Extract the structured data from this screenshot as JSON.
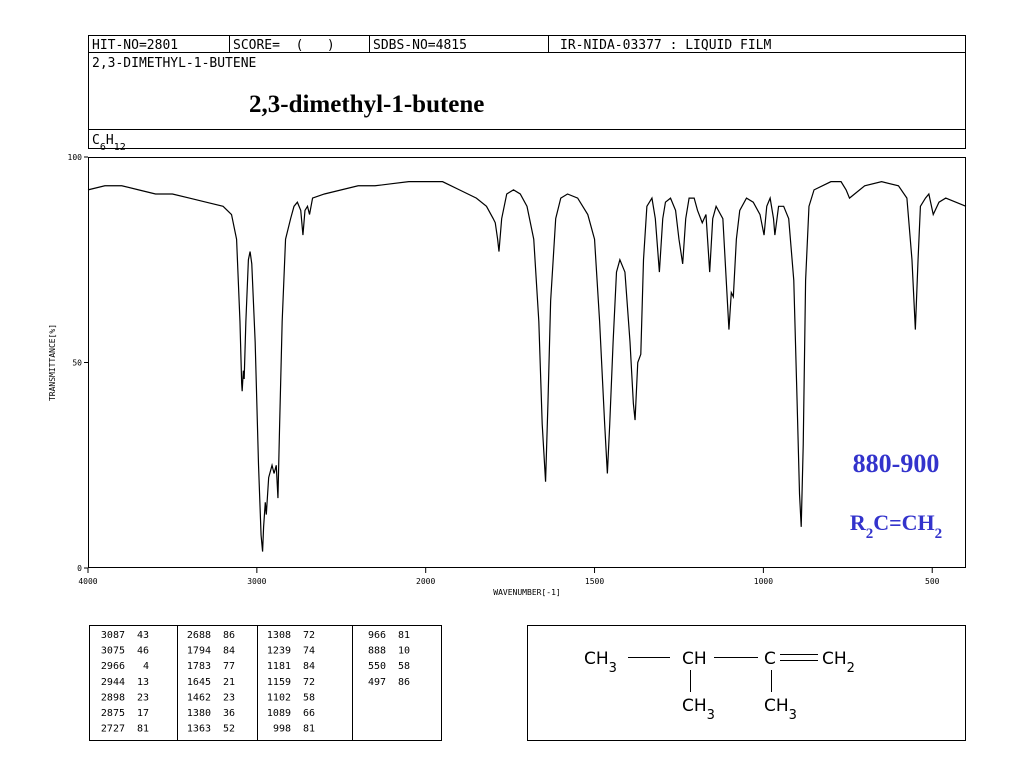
{
  "header": {
    "hit_no": "HIT-NO=2801",
    "score": "SCORE=  (   )",
    "sdbs_no": "SDBS-NO=4815",
    "ir_id": "IR-NIDA-03377 : LIQUID FILM",
    "name": "2,3-DIMETHYL-1-BUTENE",
    "name_overlay": "2,3-dimethyl-1-butene",
    "formula": [
      "C",
      "6",
      "H",
      "12"
    ]
  },
  "chart_data": {
    "type": "line",
    "x_label": "WAVENUMBER[-1]",
    "y_label": "TRANSMITTANCE[%]",
    "color": "#000000",
    "xlim": [
      4000,
      400
    ],
    "ylim": [
      0,
      100
    ],
    "xticks": [
      4000,
      3000,
      2000,
      1500,
      1000,
      500
    ],
    "yticks": [
      0,
      50,
      100
    ],
    "annotation_color": "#3333cc",
    "annotations": [
      {
        "text": [
          "880-900"
        ]
      },
      {
        "text": [
          "R",
          "2",
          "C=CH",
          "2"
        ]
      }
    ],
    "x": [
      4000,
      3900,
      3800,
      3700,
      3600,
      3500,
      3400,
      3300,
      3200,
      3150,
      3120,
      3100,
      3090,
      3087,
      3080,
      3075,
      3065,
      3050,
      3040,
      3030,
      3010,
      2990,
      2975,
      2966,
      2960,
      2950,
      2944,
      2930,
      2910,
      2898,
      2885,
      2875,
      2865,
      2850,
      2830,
      2800,
      2780,
      2760,
      2740,
      2727,
      2715,
      2700,
      2688,
      2670,
      2600,
      2500,
      2400,
      2300,
      2200,
      2100,
      2000,
      1950,
      1900,
      1850,
      1820,
      1800,
      1794,
      1787,
      1783,
      1775,
      1760,
      1740,
      1720,
      1700,
      1680,
      1665,
      1655,
      1645,
      1638,
      1630,
      1615,
      1600,
      1580,
      1550,
      1520,
      1500,
      1485,
      1470,
      1462,
      1455,
      1445,
      1435,
      1425,
      1410,
      1395,
      1385,
      1380,
      1372,
      1363,
      1355,
      1345,
      1330,
      1320,
      1308,
      1298,
      1290,
      1275,
      1260,
      1250,
      1239,
      1230,
      1220,
      1205,
      1195,
      1181,
      1170,
      1159,
      1150,
      1140,
      1120,
      1110,
      1102,
      1095,
      1089,
      1080,
      1070,
      1050,
      1030,
      1010,
      998,
      990,
      980,
      970,
      966,
      955,
      940,
      925,
      910,
      900,
      893,
      888,
      882,
      875,
      865,
      850,
      800,
      770,
      755,
      745,
      730,
      700,
      650,
      600,
      575,
      560,
      550,
      542,
      535,
      520,
      510,
      497,
      480,
      460,
      430,
      400
    ],
    "values": [
      92,
      93,
      93,
      92,
      91,
      91,
      90,
      89,
      88,
      86,
      80,
      60,
      45,
      43,
      48,
      46,
      60,
      75,
      77,
      74,
      55,
      25,
      8,
      4,
      10,
      16,
      13,
      22,
      25,
      23,
      25,
      17,
      35,
      60,
      80,
      85,
      88,
      89,
      87,
      81,
      87,
      88,
      86,
      90,
      91,
      92,
      93,
      93,
      93.5,
      94,
      94,
      94,
      92,
      90,
      88,
      85,
      84,
      80,
      77,
      85,
      91,
      92,
      91,
      88,
      80,
      60,
      35,
      21,
      40,
      65,
      85,
      90,
      91,
      90,
      86,
      80,
      60,
      35,
      23,
      35,
      55,
      72,
      75,
      72,
      55,
      40,
      36,
      50,
      52,
      75,
      88,
      90,
      85,
      72,
      85,
      89,
      90,
      87,
      80,
      74,
      85,
      90,
      90,
      87,
      84,
      86,
      72,
      85,
      88,
      85,
      70,
      58,
      67,
      66,
      80,
      87,
      90,
      89,
      86,
      81,
      88,
      90,
      85,
      81,
      88,
      88,
      85,
      70,
      40,
      18,
      10,
      30,
      70,
      88,
      92,
      94,
      94,
      92,
      90,
      91,
      93,
      94,
      93,
      90,
      75,
      58,
      75,
      88,
      90,
      91,
      86,
      89,
      90,
      89,
      88
    ]
  },
  "peak_table": {
    "columns": [
      [
        [
          3087,
          43
        ],
        [
          3075,
          46
        ],
        [
          2966,
          4
        ],
        [
          2944,
          13
        ],
        [
          2898,
          23
        ],
        [
          2875,
          17
        ],
        [
          2727,
          81
        ]
      ],
      [
        [
          2688,
          86
        ],
        [
          1794,
          84
        ],
        [
          1783,
          77
        ],
        [
          1645,
          21
        ],
        [
          1462,
          23
        ],
        [
          1380,
          36
        ],
        [
          1363,
          52
        ]
      ],
      [
        [
          1308,
          72
        ],
        [
          1239,
          74
        ],
        [
          1181,
          84
        ],
        [
          1159,
          72
        ],
        [
          1102,
          58
        ],
        [
          1089,
          66
        ],
        [
          998,
          81
        ]
      ],
      [
        [
          966,
          81
        ],
        [
          888,
          10
        ],
        [
          550,
          58
        ],
        [
          497,
          86
        ]
      ]
    ]
  },
  "structure": {
    "nodes": [
      {
        "label": [
          "CH",
          "3"
        ]
      },
      {
        "label": [
          "CH"
        ]
      },
      {
        "label": [
          "C"
        ]
      },
      {
        "label": [
          "CH",
          "2"
        ]
      },
      {
        "label": [
          "CH",
          "3"
        ]
      },
      {
        "label": [
          "CH",
          "3"
        ]
      }
    ]
  }
}
